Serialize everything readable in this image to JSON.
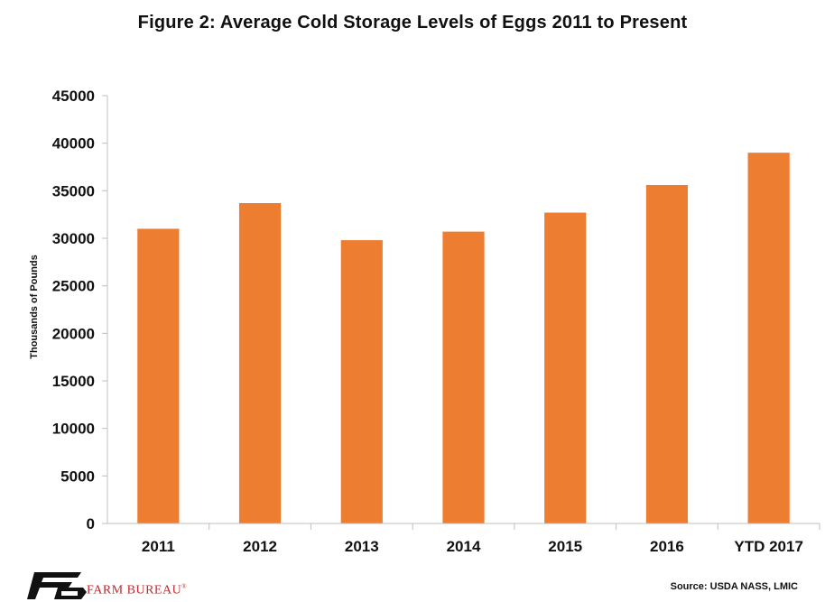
{
  "title": "Figure 2: Average Cold Storage Levels of Eggs 2011 to Present",
  "source": "Source: USDA NASS, LMIC",
  "logo": {
    "text": "FARM BUREAU",
    "mark": "®"
  },
  "colors": {
    "bar": "#ED7D31",
    "axis": "#BFBFBF",
    "text": "#111111",
    "brand": "#C1272D"
  },
  "chart_data": {
    "type": "bar",
    "title": "Figure 2: Average Cold Storage Levels of Eggs 2011 to Present",
    "xlabel": "",
    "ylabel": "Thousands of Pounds",
    "categories": [
      "2011",
      "2012",
      "2013",
      "2014",
      "2015",
      "2016",
      "YTD 2017"
    ],
    "values": [
      31000,
      33700,
      29800,
      30700,
      32700,
      35600,
      39000
    ],
    "ylim": [
      0,
      45000
    ],
    "yticks": [
      0,
      5000,
      10000,
      15000,
      20000,
      25000,
      30000,
      35000,
      40000,
      45000
    ],
    "grid": false,
    "legend": "none"
  }
}
